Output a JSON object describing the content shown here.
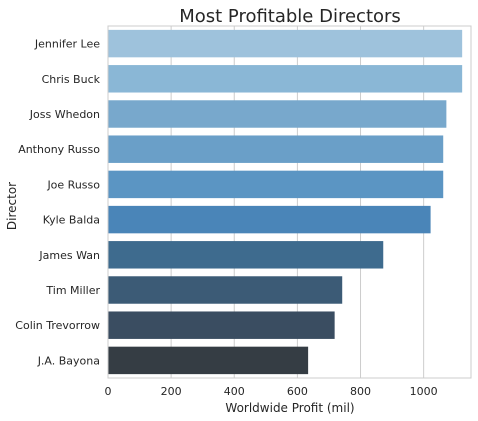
{
  "chart_data": {
    "type": "bar",
    "orientation": "horizontal",
    "title": "Most Profitable Directors",
    "xlabel": "Worldwide Profit (mil)",
    "ylabel": "Director",
    "categories": [
      "Jennifer Lee",
      "Chris Buck",
      "Joss Whedon",
      "Anthony Russo",
      "Joe Russo",
      "Kyle Balda",
      "James Wan",
      "Tim Miller",
      "Colin Trevorrow",
      "J.A. Bayona"
    ],
    "values": [
      1122,
      1122,
      1072,
      1062,
      1062,
      1022,
      872,
      742,
      718,
      634
    ],
    "xlim": [
      0,
      1150
    ],
    "xticks": [
      0,
      200,
      400,
      600,
      800,
      1000
    ],
    "grid": "vertical",
    "colors": [
      "#9ec2dc",
      "#8ab7d6",
      "#78a8cc",
      "#6a9fc8",
      "#5b95c3",
      "#4a85b8",
      "#3e6b8e",
      "#3c5b76",
      "#3a4d61",
      "#353d44"
    ]
  }
}
